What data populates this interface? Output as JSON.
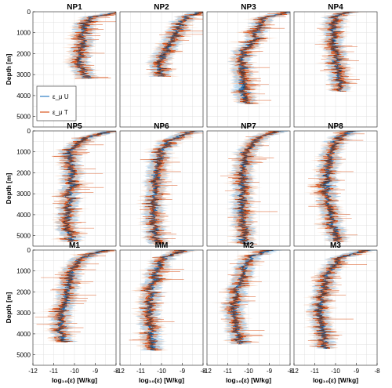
{
  "chart_data": {
    "type": "line",
    "layout": "4 columns x 3 rows of profile panels",
    "shared_y_axis": {
      "label": "Depth [m]",
      "range": [
        0,
        5500
      ],
      "reversed": true,
      "ticks": [
        "0",
        "1000",
        "2000",
        "3000",
        "4000",
        "5000"
      ]
    },
    "shared_x_axis": {
      "label": "log₁₀(ε) [W/kg]",
      "range": [
        -12,
        -8
      ],
      "ticks": [
        "-12",
        "-11",
        "-10",
        "-9",
        "-8"
      ]
    },
    "grid": true,
    "legend": {
      "placement": "bottom-left of panel NP3 (row 1, col 1)",
      "entries": [
        {
          "label": "ε_μ U",
          "color": "#2f7fc4"
        },
        {
          "label": "ε_μ T",
          "color": "#d9561f"
        }
      ]
    },
    "colors": {
      "U_line": "#1f6bb0",
      "U_band": "#9ec8ea",
      "T_line": "#d9561f",
      "T_band": "#f2b48e",
      "dark_overlay": "#1f2a3a"
    },
    "panels": [
      {
        "title": "NP1",
        "maxdepth": 3200,
        "profile": [
          [
            0,
            -8.2
          ],
          [
            300,
            -9.3
          ],
          [
            800,
            -9.6
          ],
          [
            1500,
            -9.6
          ],
          [
            2000,
            -9.7
          ],
          [
            2500,
            -9.8
          ],
          [
            3000,
            -9.5
          ],
          [
            3200,
            -9.4
          ]
        ]
      },
      {
        "title": "NP2",
        "maxdepth": 3100,
        "profile": [
          [
            0,
            -8.6
          ],
          [
            500,
            -9.0
          ],
          [
            1000,
            -9.3
          ],
          [
            1600,
            -9.6
          ],
          [
            2200,
            -10.0
          ],
          [
            2700,
            -10.1
          ],
          [
            3100,
            -10.0
          ]
        ]
      },
      {
        "title": "NP3",
        "maxdepth": 4400,
        "profile": [
          [
            0,
            -8.5
          ],
          [
            300,
            -9.2
          ],
          [
            800,
            -9.6
          ],
          [
            1300,
            -9.7
          ],
          [
            1800,
            -10.1
          ],
          [
            2500,
            -10.3
          ],
          [
            3200,
            -10.3
          ],
          [
            4000,
            -10.2
          ],
          [
            4400,
            -10.1
          ]
        ]
      },
      {
        "title": "NP4",
        "maxdepth": 3800,
        "profile": [
          [
            0,
            -9.9
          ],
          [
            500,
            -10.1
          ],
          [
            1200,
            -10.1
          ],
          [
            2000,
            -10.0
          ],
          [
            2800,
            -9.9
          ],
          [
            3400,
            -9.7
          ],
          [
            3800,
            -9.8
          ]
        ]
      },
      {
        "title": "NP5",
        "maxdepth": 5300,
        "profile": [
          [
            0,
            -8.6
          ],
          [
            400,
            -9.6
          ],
          [
            1000,
            -10.3
          ],
          [
            2000,
            -10.1
          ],
          [
            3000,
            -10.2
          ],
          [
            3800,
            -10.3
          ],
          [
            4500,
            -10.4
          ],
          [
            5300,
            -10.1
          ]
        ]
      },
      {
        "title": "NP6",
        "maxdepth": 5400,
        "profile": [
          [
            0,
            -8.8
          ],
          [
            400,
            -9.4
          ],
          [
            1000,
            -10.0
          ],
          [
            2000,
            -10.3
          ],
          [
            3000,
            -10.3
          ],
          [
            4000,
            -10.4
          ],
          [
            5000,
            -10.3
          ],
          [
            5400,
            -10.2
          ]
        ]
      },
      {
        "title": "NP7",
        "maxdepth": 5400,
        "profile": [
          [
            0,
            -9.0
          ],
          [
            400,
            -9.6
          ],
          [
            1000,
            -10.1
          ],
          [
            2000,
            -10.3
          ],
          [
            3000,
            -10.3
          ],
          [
            4000,
            -10.3
          ],
          [
            5000,
            -10.2
          ],
          [
            5400,
            -10.1
          ]
        ]
      },
      {
        "title": "NP8",
        "maxdepth": 5300,
        "profile": [
          [
            0,
            -9.6
          ],
          [
            300,
            -9.8
          ],
          [
            1000,
            -10.2
          ],
          [
            2000,
            -10.4
          ],
          [
            3000,
            -10.4
          ],
          [
            4000,
            -10.3
          ],
          [
            5000,
            -10.0
          ],
          [
            5300,
            -9.9
          ]
        ]
      },
      {
        "title": "M1",
        "maxdepth": 4400,
        "profile": [
          [
            0,
            -9.0
          ],
          [
            500,
            -9.8
          ],
          [
            1200,
            -10.2
          ],
          [
            2000,
            -10.3
          ],
          [
            3000,
            -10.6
          ],
          [
            3800,
            -10.7
          ],
          [
            4400,
            -10.5
          ]
        ]
      },
      {
        "title": "MM",
        "maxdepth": 4800,
        "profile": [
          [
            0,
            -9.3
          ],
          [
            500,
            -10.0
          ],
          [
            1200,
            -10.3
          ],
          [
            2000,
            -10.5
          ],
          [
            3000,
            -10.6
          ],
          [
            4000,
            -10.5
          ],
          [
            4800,
            -10.4
          ]
        ]
      },
      {
        "title": "M2",
        "maxdepth": 4500,
        "profile": [
          [
            0,
            -9.4
          ],
          [
            500,
            -10.0
          ],
          [
            1200,
            -10.3
          ],
          [
            2000,
            -10.6
          ],
          [
            3000,
            -10.7
          ],
          [
            4000,
            -10.5
          ],
          [
            4500,
            -10.4
          ]
        ]
      },
      {
        "title": "M3",
        "maxdepth": 4700,
        "profile": [
          [
            0,
            -8.9
          ],
          [
            400,
            -9.8
          ],
          [
            1000,
            -10.3
          ],
          [
            2000,
            -10.6
          ],
          [
            3000,
            -10.8
          ],
          [
            4000,
            -10.6
          ],
          [
            4700,
            -10.5
          ]
        ]
      }
    ]
  }
}
